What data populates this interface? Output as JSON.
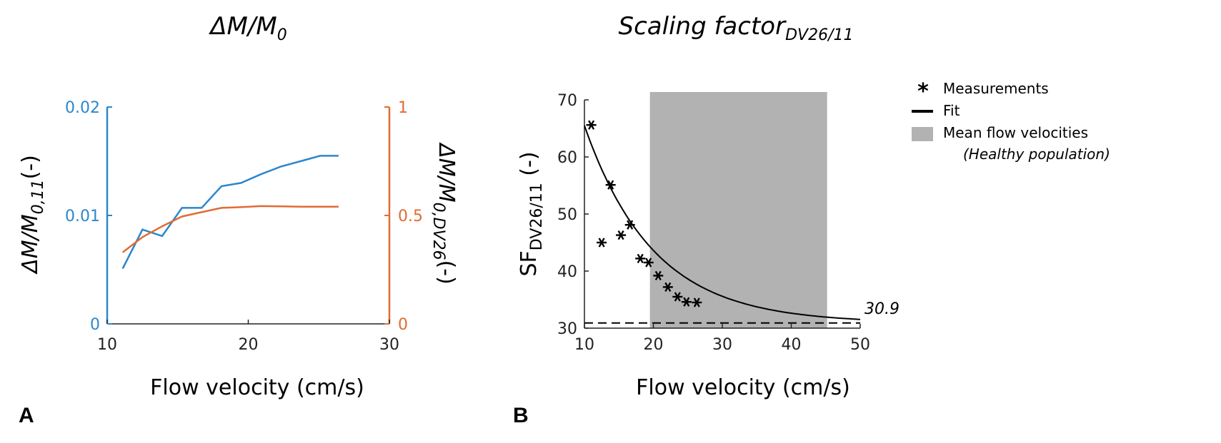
{
  "panel_a": {
    "label": "A",
    "title": "ΔM/M",
    "title_sub": "0",
    "xlabel": "Flow velocity (cm/s)",
    "ylabel_left": "ΔM/M",
    "ylabel_left_sub": "0,11",
    "ylabel_left_suffix": "(-)",
    "ylabel_right": "ΔM/M",
    "ylabel_right_sub": "0,DV26",
    "ylabel_right_suffix": "(-)",
    "x_ticks": [
      "10",
      "20",
      "30"
    ],
    "yleft_ticks": [
      "0",
      "0.01",
      "0.02"
    ],
    "yright_ticks": [
      "0",
      "0.5",
      "1"
    ],
    "left_color": "#2b87cc",
    "right_color": "#e06c33"
  },
  "panel_b": {
    "label": "B",
    "title": "Scaling factor",
    "title_sub": "DV26/11",
    "xlabel": "Flow velocity (cm/s)",
    "ylabel": "SF",
    "ylabel_sub": "DV26/11",
    "ylabel_suffix": " (-)",
    "x_ticks": [
      "10",
      "20",
      "30",
      "40",
      "50"
    ],
    "y_ticks": [
      "30",
      "40",
      "50",
      "60",
      "70"
    ],
    "asymptote_label": "30.9",
    "legend": {
      "measurements": "Measurements",
      "fit": "Fit",
      "band": "Mean flow velocities",
      "band_note": "(Healthy population)"
    },
    "band_color": "#b2b2b2"
  },
  "chart_data": [
    {
      "type": "line",
      "title": "ΔM/M0",
      "xlabel": "Flow velocity (cm/s)",
      "ylabel": "ΔM/M0,11 (-)",
      "ylabel_right": "ΔM/M0,DV26 (-)",
      "xlim": [
        10,
        30
      ],
      "ylim": [
        0,
        0.02
      ],
      "ylim_right": [
        0,
        1
      ],
      "series": [
        {
          "name": "ΔM/M0,11",
          "axis": "left",
          "color": "#2b87cc",
          "x": [
            11.1,
            12.5,
            13.9,
            15.3,
            16.7,
            18.1,
            19.5,
            20.9,
            22.3,
            23.7,
            25.1,
            26.4
          ],
          "y": [
            0.0051,
            0.0087,
            0.0081,
            0.0107,
            0.0107,
            0.0127,
            0.013,
            0.0138,
            0.0145,
            0.015,
            0.0155,
            0.0155
          ]
        },
        {
          "name": "ΔM/M0,DV26",
          "axis": "right",
          "color": "#e06c33",
          "x": [
            11.1,
            12.5,
            13.9,
            15.3,
            16.7,
            18.1,
            19.5,
            20.9,
            22.3,
            23.7,
            25.1,
            26.4
          ],
          "y": [
            0.33,
            0.4,
            0.45,
            0.495,
            0.515,
            0.535,
            0.538,
            0.543,
            0.542,
            0.54,
            0.54,
            0.54
          ]
        }
      ]
    },
    {
      "type": "scatter",
      "title": "Scaling factor DV26/11",
      "xlabel": "Flow velocity (cm/s)",
      "ylabel": "SF DV26/11 (-)",
      "xlim": [
        10,
        50
      ],
      "ylim": [
        30,
        70
      ],
      "measurements": {
        "name": "Measurements",
        "x": [
          11.0,
          12.5,
          13.8,
          15.3,
          16.6,
          18.1,
          19.3,
          20.7,
          22.1,
          23.5,
          24.8,
          26.3
        ],
        "y": [
          65.6,
          45.0,
          55.1,
          46.3,
          48.1,
          42.2,
          41.5,
          39.2,
          37.2,
          35.5,
          34.6,
          34.5
        ]
      },
      "fit": {
        "name": "Fit",
        "model": "exponential",
        "asymptote": 30.9,
        "amplitude": 34.6,
        "decay": 0.1,
        "x_start": 10,
        "x_end": 50
      },
      "band": {
        "name": "Mean flow velocities (Healthy population)",
        "x": [
          19.5,
          45.2
        ]
      },
      "asymptote_line": 30.9
    }
  ]
}
